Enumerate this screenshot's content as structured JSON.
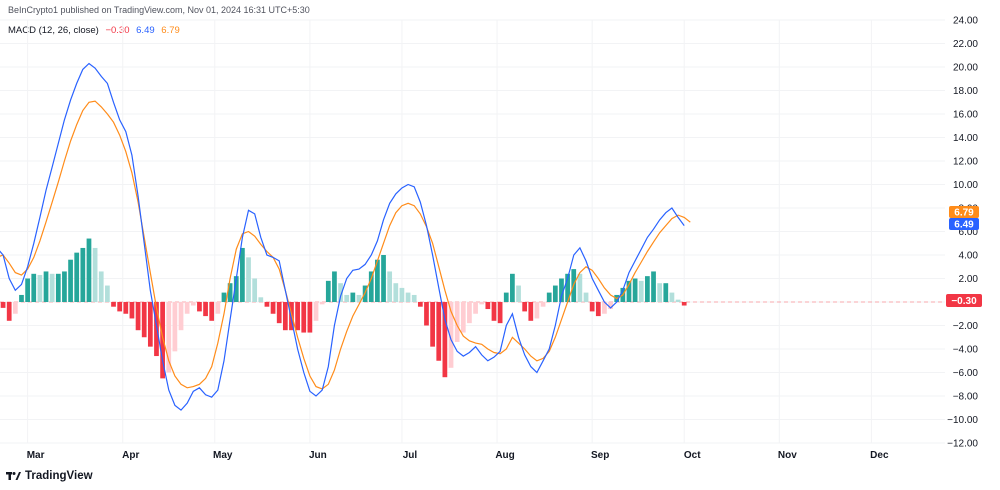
{
  "header": {
    "publisher_text": "BeInCrypto1 published on TradingView.com, Nov 01, 2024 16:31 UTC+5:30"
  },
  "legend": {
    "indicator": "MACD (12, 26, close)",
    "histogram_value": "−0.30",
    "macd_value": "6.49",
    "signal_value": "6.79"
  },
  "badges": {
    "signal": "6.79",
    "macd": "6.49",
    "histogram": "−0.30"
  },
  "footer": {
    "logo_text": "TradingView"
  },
  "colors": {
    "macd_line": "#2962ff",
    "signal_line": "#ff8c1a",
    "hist_pos_strong": "#26a69a",
    "hist_pos_weak": "#b2dfdb",
    "hist_neg_strong": "#f23645",
    "hist_neg_weak": "#ffcdd2"
  },
  "chart_data": {
    "type": "line",
    "title": "MACD (12, 26, close)",
    "ylim": [
      -12,
      24
    ],
    "x_range": [
      "2024-02-21",
      "2024-12-25"
    ],
    "y_ticks": [
      "24.00",
      "22.00",
      "20.00",
      "18.00",
      "16.00",
      "14.00",
      "12.00",
      "10.00",
      "8.00",
      "6.00",
      "4.00",
      "2.00",
      "0.00",
      "−2.00",
      "−4.00",
      "−6.00",
      "−8.00",
      "−10.00",
      "−12.00"
    ],
    "x_ticks": [
      {
        "date": "2024-03-01",
        "label": "Mar"
      },
      {
        "date": "2024-04-01",
        "label": "Apr"
      },
      {
        "date": "2024-05-01",
        "label": "May"
      },
      {
        "date": "2024-06-01",
        "label": "Jun"
      },
      {
        "date": "2024-07-01",
        "label": "Jul"
      },
      {
        "date": "2024-08-01",
        "label": "Aug"
      },
      {
        "date": "2024-09-01",
        "label": "Sep"
      },
      {
        "date": "2024-10-01",
        "label": "Oct"
      },
      {
        "date": "2024-11-01",
        "label": "Nov"
      },
      {
        "date": "2024-12-01",
        "label": "Dec"
      }
    ],
    "series": [
      {
        "name": "MACD",
        "x": [
          -1,
          1,
          3,
          5,
          7,
          9,
          11,
          13,
          15,
          17,
          19,
          21,
          23,
          25,
          27,
          29,
          31,
          33,
          35,
          37,
          39,
          41,
          43,
          45,
          47,
          49,
          51,
          53,
          55,
          57,
          59,
          61,
          63,
          65,
          67,
          69,
          71,
          73,
          75,
          77,
          79,
          81,
          83,
          85,
          87,
          89,
          91,
          93,
          95,
          97,
          99,
          101,
          103,
          105,
          107,
          109,
          111,
          113,
          115,
          117,
          119,
          121,
          123,
          125,
          127,
          129,
          131,
          133,
          135,
          137,
          139,
          141,
          143,
          145,
          147,
          149,
          151,
          153,
          155,
          157,
          159,
          161,
          163,
          165,
          167,
          169,
          171,
          173,
          175,
          177,
          179,
          181,
          183,
          185,
          187,
          189,
          191,
          193,
          195,
          197,
          199,
          201,
          203,
          205,
          207,
          209,
          211,
          213,
          215,
          217,
          219,
          221,
          223,
          225,
          227,
          229,
          231,
          233,
          235,
          237,
          239,
          241,
          243,
          245,
          247,
          249,
          251
        ],
        "values": [
          4.6,
          4.0,
          2.0,
          1.0,
          1.5,
          3.0,
          5.0,
          7.2,
          9.5,
          11.5,
          13.5,
          15.5,
          17.2,
          18.6,
          19.8,
          20.3,
          19.9,
          19.2,
          18.6,
          17.0,
          15.5,
          14.5,
          12.5,
          9.0,
          5.0,
          1.0,
          -2.0,
          -5.0,
          -7.5,
          -8.8,
          -9.2,
          -8.6,
          -7.6,
          -7.3,
          -7.9,
          -8.1,
          -7.5,
          -5.0,
          -1.5,
          2.0,
          5.5,
          7.8,
          7.5,
          5.5,
          4.0,
          3.8,
          3.5,
          1.0,
          -1.5,
          -4.0,
          -6.0,
          -7.6,
          -8.0,
          -7.5,
          -5.5,
          -2.0,
          0.5,
          2.0,
          2.7,
          2.8,
          3.2,
          4.0,
          5.2,
          7.0,
          8.4,
          9.2,
          9.7,
          10.0,
          9.8,
          8.5,
          6.5,
          4.0,
          1.2,
          -1.5,
          -3.2,
          -4.2,
          -4.6,
          -4.3,
          -3.8,
          -4.5,
          -5.0,
          -4.7,
          -4.2,
          -2.0,
          -1.0,
          -3.0,
          -4.5,
          -5.5,
          -6.0,
          -5.0,
          -4.0,
          -2.0,
          0.5,
          2.0,
          4.0,
          4.6,
          3.5,
          2.0,
          1.0,
          0.0,
          -0.5,
          0.0,
          1.0,
          2.5,
          3.5,
          4.5,
          5.5,
          6.2,
          7.0,
          7.6,
          8.0,
          7.2,
          6.5,
          null,
          null,
          null,
          null,
          null,
          null,
          null,
          null,
          null,
          null,
          null,
          null,
          null,
          null
        ]
      },
      {
        "name": "Signal",
        "x": [
          -1,
          1,
          3,
          5,
          7,
          9,
          11,
          13,
          15,
          17,
          19,
          21,
          23,
          25,
          27,
          29,
          31,
          33,
          35,
          37,
          39,
          41,
          43,
          45,
          47,
          49,
          51,
          53,
          55,
          57,
          59,
          61,
          63,
          65,
          67,
          69,
          71,
          73,
          75,
          77,
          79,
          81,
          83,
          85,
          87,
          89,
          91,
          93,
          95,
          97,
          99,
          101,
          103,
          105,
          107,
          109,
          111,
          113,
          115,
          117,
          119,
          121,
          123,
          125,
          127,
          129,
          131,
          133,
          135,
          137,
          139,
          141,
          143,
          145,
          147,
          149,
          151,
          153,
          155,
          157,
          159,
          161,
          163,
          165,
          167,
          169,
          171,
          173,
          175,
          177,
          179,
          181,
          183,
          185,
          187,
          189,
          191,
          193,
          195,
          197,
          199,
          201,
          203,
          205,
          207,
          209,
          211,
          213,
          215,
          217,
          219,
          221,
          223,
          225,
          227,
          229,
          231,
          233,
          235,
          237,
          239,
          241,
          243,
          245,
          247,
          249,
          251
        ],
        "values": [
          3.8,
          4.0,
          3.3,
          2.5,
          2.3,
          2.8,
          3.8,
          5.2,
          6.8,
          8.5,
          10.2,
          12.0,
          13.7,
          15.1,
          16.3,
          17.0,
          17.1,
          16.6,
          16.0,
          15.3,
          14.2,
          12.8,
          11.0,
          8.5,
          5.5,
          2.5,
          -0.5,
          -3.0,
          -5.0,
          -6.3,
          -7.0,
          -7.3,
          -7.2,
          -7.0,
          -6.5,
          -5.5,
          -3.5,
          -1.0,
          2.0,
          4.5,
          5.8,
          6.0,
          5.6,
          4.9,
          4.3,
          3.8,
          2.8,
          1.0,
          -1.0,
          -3.0,
          -4.8,
          -6.3,
          -7.2,
          -7.4,
          -7.0,
          -5.8,
          -4.0,
          -2.5,
          -1.2,
          -0.2,
          0.8,
          2.0,
          3.5,
          5.0,
          6.5,
          7.6,
          8.2,
          8.4,
          8.2,
          7.5,
          6.4,
          5.0,
          3.0,
          1.0,
          -0.8,
          -2.0,
          -2.9,
          -3.3,
          -3.5,
          -3.6,
          -4.0,
          -4.3,
          -4.4,
          -4.0,
          -3.0,
          -3.5,
          -4.0,
          -4.6,
          -5.0,
          -4.8,
          -4.2,
          -3.0,
          -1.5,
          0.0,
          1.5,
          2.5,
          3.0,
          2.7,
          2.0,
          1.2,
          0.6,
          0.3,
          0.6,
          1.5,
          2.5,
          3.4,
          4.3,
          5.1,
          5.9,
          6.5,
          7.1,
          7.4,
          7.2,
          6.79,
          null,
          null,
          null,
          null,
          null,
          null,
          null,
          null,
          null,
          null,
          null,
          null,
          null
        ]
      },
      {
        "name": "Histogram",
        "x": [
          -1,
          1,
          3,
          5,
          7,
          9,
          11,
          13,
          15,
          17,
          19,
          21,
          23,
          25,
          27,
          29,
          31,
          33,
          35,
          37,
          39,
          41,
          43,
          45,
          47,
          49,
          51,
          53,
          55,
          57,
          59,
          61,
          63,
          65,
          67,
          69,
          71,
          73,
          75,
          77,
          79,
          81,
          83,
          85,
          87,
          89,
          91,
          93,
          95,
          97,
          99,
          101,
          103,
          105,
          107,
          109,
          111,
          113,
          115,
          117,
          119,
          121,
          123,
          125,
          127,
          129,
          131,
          133,
          135,
          137,
          139,
          141,
          143,
          145,
          147,
          149,
          151,
          153,
          155,
          157,
          159,
          161,
          163,
          165,
          167,
          169,
          171,
          173,
          175,
          177,
          179,
          181,
          183,
          185,
          187,
          189,
          191,
          193,
          195,
          197,
          199,
          201,
          203,
          205,
          207,
          209,
          211,
          213,
          215,
          217,
          219,
          221,
          223,
          225,
          227,
          229,
          231,
          233,
          235,
          237,
          239,
          241,
          243,
          245,
          247,
          249,
          251
        ],
        "values": [
          0.8,
          -0.5,
          -1.6,
          -1.0,
          0.6,
          2.0,
          2.4,
          2.3,
          2.6,
          2.4,
          2.4,
          2.6,
          3.6,
          4.2,
          4.6,
          5.4,
          4.6,
          2.6,
          1.4,
          -0.4,
          -0.8,
          -1.0,
          -1.4,
          -2.4,
          -3.0,
          -3.8,
          -4.6,
          -6.5,
          -6.0,
          -4.2,
          -2.4,
          -1.0,
          -0.3,
          -0.8,
          -1.2,
          -1.6,
          -1.0,
          0.8,
          1.6,
          2.2,
          4.6,
          3.8,
          2.0,
          0.4,
          -0.4,
          -1.0,
          -1.8,
          -2.4,
          -2.4,
          -2.4,
          -2.6,
          -2.6,
          -1.6,
          -0.2,
          1.8,
          2.6,
          1.6,
          0.6,
          0.8,
          0.6,
          1.4,
          2.6,
          3.6,
          4.0,
          2.6,
          1.6,
          1.2,
          0.8,
          0.6,
          -0.4,
          -2.0,
          -3.8,
          -5.0,
          -6.4,
          -5.6,
          -3.4,
          -2.6,
          -1.8,
          -1.0,
          -0.2,
          -0.6,
          -1.6,
          -1.8,
          0.8,
          2.4,
          1.4,
          -0.8,
          -1.6,
          -1.4,
          -0.4,
          0.8,
          1.4,
          2.0,
          2.4,
          2.8,
          2.4,
          0.8,
          -0.8,
          -1.2,
          -1.0,
          -0.6,
          0.6,
          1.2,
          1.8,
          2.0,
          1.8,
          2.2,
          2.6,
          1.6,
          1.6,
          0.8,
          0.2,
          -0.3,
          null,
          null,
          null,
          null,
          null,
          null,
          null,
          null,
          null,
          null,
          null,
          null,
          null,
          null
        ]
      }
    ]
  }
}
